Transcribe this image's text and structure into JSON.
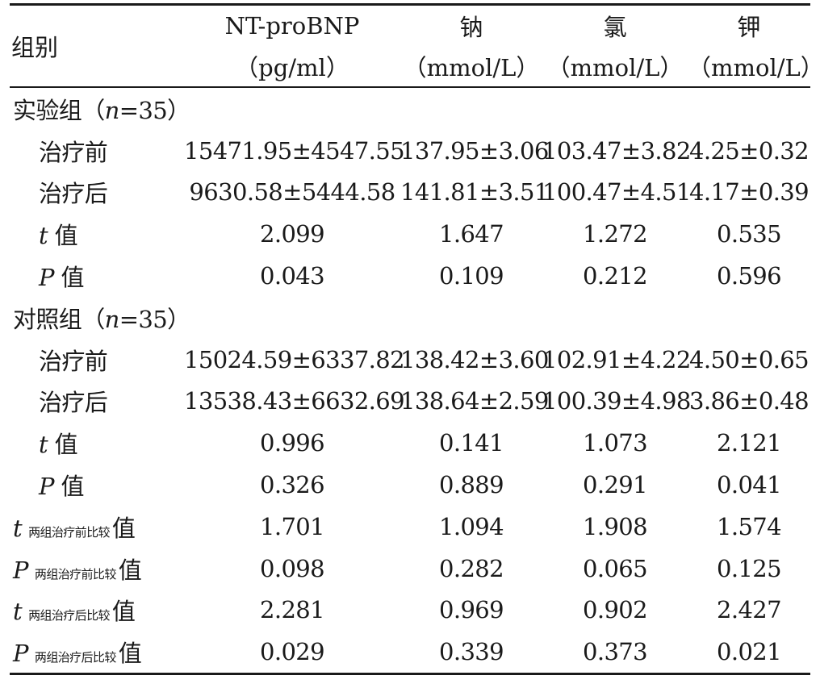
{
  "header": {
    "group": "组别",
    "cols": [
      {
        "name": "NT-proBNP",
        "unit": "（pg/ml）"
      },
      {
        "name": "钠",
        "unit": "（mmol/L）"
      },
      {
        "name": "氯",
        "unit": "（mmol/L）"
      },
      {
        "name": "钾",
        "unit": "（mmol/L）"
      }
    ]
  },
  "rows": [
    {
      "type": "section",
      "label": "实验组",
      "n_var": "n",
      "n_rest": "=35）",
      "paren_open": "（"
    },
    {
      "type": "data",
      "label": "治疗前",
      "values": [
        "15471.95±4547.55",
        "137.95±3.06",
        "103.47±3.82",
        "4.25±0.32"
      ]
    },
    {
      "type": "data",
      "label": "治疗后",
      "values": [
        "9630.58±5444.58",
        "141.81±3.51",
        "100.47±4.51",
        "4.17±0.39"
      ]
    },
    {
      "type": "stat",
      "var": "t",
      "suffix": " 值",
      "values": [
        "2.099",
        "1.647",
        "1.272",
        "0.535"
      ]
    },
    {
      "type": "stat",
      "var": "P",
      "suffix": " 值",
      "values": [
        "0.043",
        "0.109",
        "0.212",
        "0.596"
      ]
    },
    {
      "type": "section",
      "label": "对照组",
      "n_var": "n",
      "n_rest": "=35）",
      "paren_open": "（"
    },
    {
      "type": "data",
      "label": "治疗前",
      "values": [
        "15024.59±6337.82",
        "138.42±3.60",
        "102.91±4.22",
        "4.50±0.65"
      ]
    },
    {
      "type": "data",
      "label": "治疗后",
      "values": [
        "13538.43±6632.69",
        "138.64±2.59",
        "100.39±4.98",
        "3.86±0.48"
      ]
    },
    {
      "type": "stat",
      "var": "t",
      "suffix": " 值",
      "values": [
        "0.996",
        "0.141",
        "1.073",
        "2.121"
      ]
    },
    {
      "type": "stat",
      "var": "P",
      "suffix": " 值",
      "values": [
        "0.326",
        "0.889",
        "0.291",
        "0.041"
      ]
    },
    {
      "type": "cmp",
      "var": "t",
      "sub": "两组治疗前比较",
      "suffix": "值",
      "values": [
        "1.701",
        "1.094",
        "1.908",
        "1.574"
      ]
    },
    {
      "type": "cmp",
      "var": "P",
      "sub": "两组治疗前比较",
      "suffix": "值",
      "values": [
        "0.098",
        "0.282",
        "0.065",
        "0.125"
      ]
    },
    {
      "type": "cmp",
      "var": "t",
      "sub": "两组治疗后比较",
      "suffix": "值",
      "values": [
        "2.281",
        "0.969",
        "0.902",
        "2.427"
      ]
    },
    {
      "type": "cmp",
      "var": "P",
      "sub": "两组治疗后比较",
      "suffix": "值",
      "values": [
        "0.029",
        "0.339",
        "0.373",
        "0.021"
      ]
    }
  ]
}
